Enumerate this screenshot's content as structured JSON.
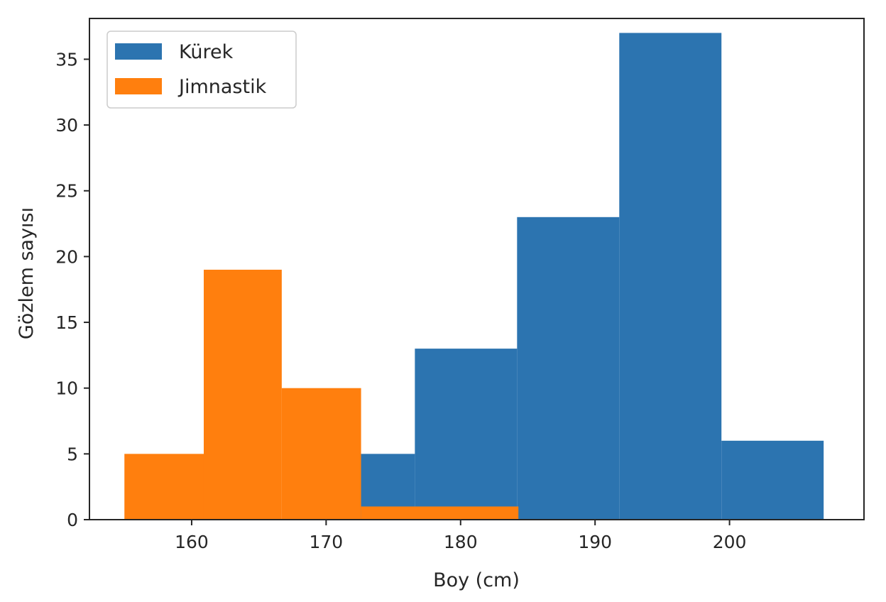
{
  "chart_data": {
    "type": "histogram",
    "title": "",
    "xlabel": "Boy (cm)",
    "ylabel": "Gözlem sayısı",
    "xlim": [
      152.4,
      210.0
    ],
    "ylim": [
      0,
      38.1
    ],
    "xticks": [
      160,
      170,
      180,
      190,
      200
    ],
    "yticks": [
      0,
      5,
      10,
      15,
      20,
      25,
      30,
      35
    ],
    "grid": false,
    "legend_position": "top-left",
    "series": [
      {
        "name": "Kürek",
        "color": "#2c74b0",
        "bins": [
          {
            "x0": 172.4,
            "x1": 176.6,
            "count": 5
          },
          {
            "x0": 176.6,
            "x1": 184.2,
            "count": 13
          },
          {
            "x0": 184.2,
            "x1": 191.8,
            "count": 23
          },
          {
            "x0": 191.8,
            "x1": 199.4,
            "count": 37
          },
          {
            "x0": 199.4,
            "x1": 207.0,
            "count": 6
          }
        ]
      },
      {
        "name": "Jimnastik",
        "color": "#ff7f0e",
        "bins": [
          {
            "x0": 155.0,
            "x1": 160.9,
            "count": 5
          },
          {
            "x0": 160.9,
            "x1": 166.7,
            "count": 19
          },
          {
            "x0": 166.7,
            "x1": 172.6,
            "count": 10
          },
          {
            "x0": 172.6,
            "x1": 184.3,
            "count": 1
          }
        ]
      }
    ]
  }
}
